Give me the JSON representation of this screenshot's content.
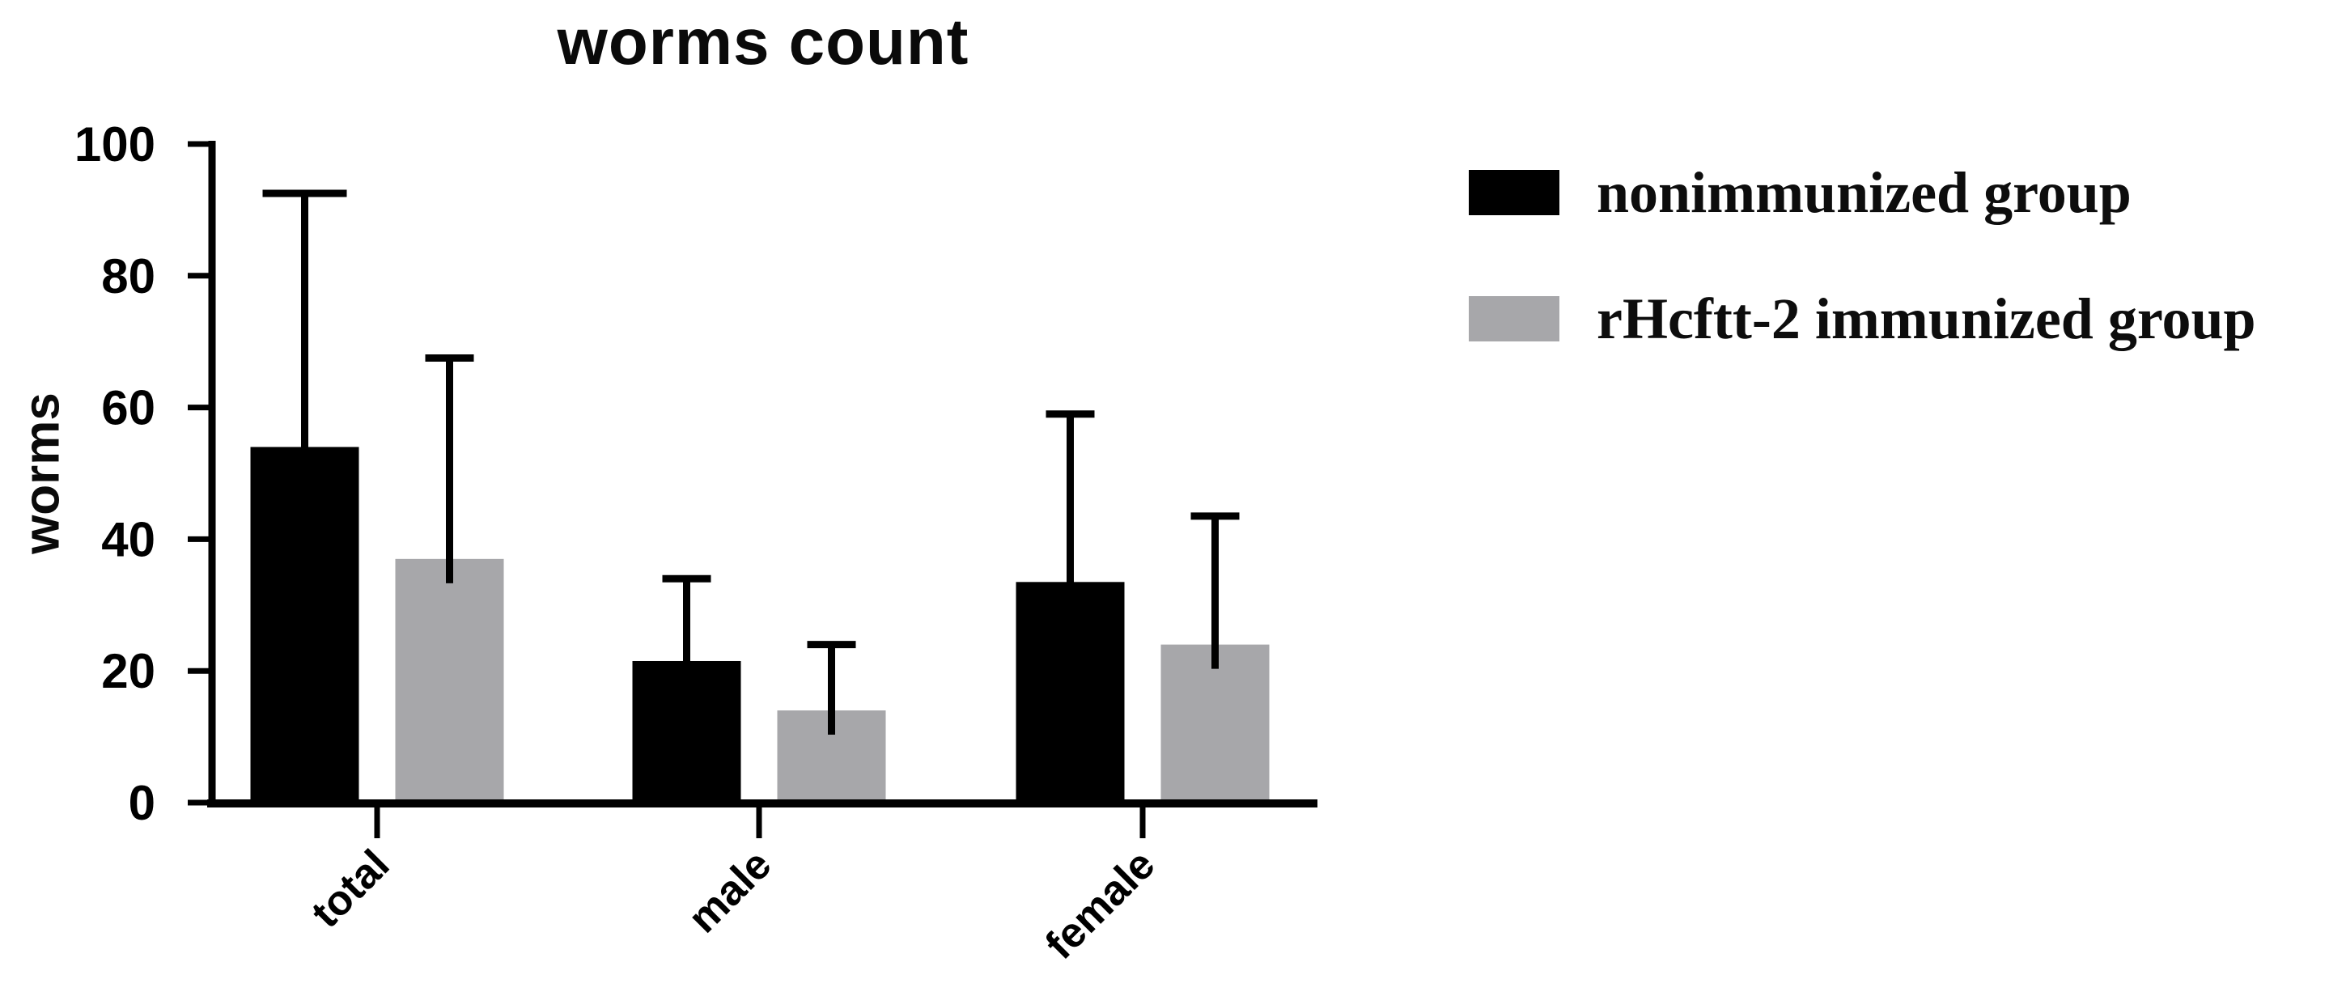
{
  "page": {
    "background": "#ffffff",
    "text_color": "#0a0a0a"
  },
  "chart_data": {
    "type": "bar",
    "title": "worms count",
    "ylabel": "worms",
    "xlabel": "",
    "categories": [
      "total",
      "male",
      "female"
    ],
    "series": [
      {
        "name": "nonimmunized group",
        "color": "#000000",
        "values": [
          54,
          21.5,
          33.5
        ],
        "errors_plus": [
          38.5,
          12.5,
          25.5
        ]
      },
      {
        "name": "rHcftt-2 immunized group",
        "color": "#a7a7aa",
        "values": [
          37,
          14,
          24
        ],
        "errors_plus": [
          30.5,
          10,
          19.5
        ]
      }
    ],
    "ylim": [
      0,
      100
    ],
    "yticks": [
      0,
      20,
      40,
      60,
      80,
      100
    ],
    "grid": false,
    "legend_position": "top-right",
    "error_bars": "upper_sd_with_caps",
    "axis_color": "#000000"
  }
}
